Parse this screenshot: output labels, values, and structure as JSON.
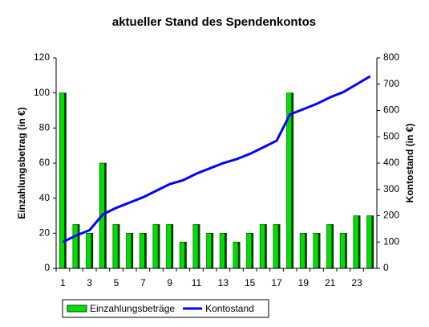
{
  "chart_data": {
    "type": "bar",
    "title": "aktueller Stand des Spendenkontos",
    "y_label": "Einzahlungsbetrag (in €)",
    "y2_label": "Kontostand (in €)",
    "categories": [
      1,
      null,
      3,
      null,
      5,
      null,
      7,
      null,
      9,
      null,
      11,
      null,
      13,
      null,
      15,
      null,
      17,
      null,
      19,
      null,
      21,
      null,
      23,
      null
    ],
    "series": [
      {
        "name": "Einzahlungsbeträge",
        "type": "bar",
        "color": "#00e000",
        "values": [
          100,
          25,
          20,
          60,
          25,
          20,
          20,
          25,
          25,
          15,
          25,
          20,
          20,
          15,
          20,
          25,
          25,
          100,
          20,
          20,
          25,
          20,
          30,
          30
        ]
      },
      {
        "name": "Kontostand",
        "type": "line",
        "axis": "y2",
        "color": "#0000ff",
        "values": [
          100,
          125,
          145,
          205,
          230,
          250,
          270,
          295,
          320,
          335,
          360,
          380,
          400,
          415,
          435,
          460,
          485,
          585,
          605,
          625,
          650,
          670,
          700,
          730
        ]
      }
    ],
    "ylim": [
      0,
      120
    ],
    "yticks": [
      0,
      20,
      40,
      60,
      80,
      100,
      120
    ],
    "y2lim": [
      0,
      800
    ],
    "y2ticks": [
      0,
      100,
      200,
      300,
      400,
      500,
      600,
      700,
      800
    ],
    "legend": "bottom"
  }
}
